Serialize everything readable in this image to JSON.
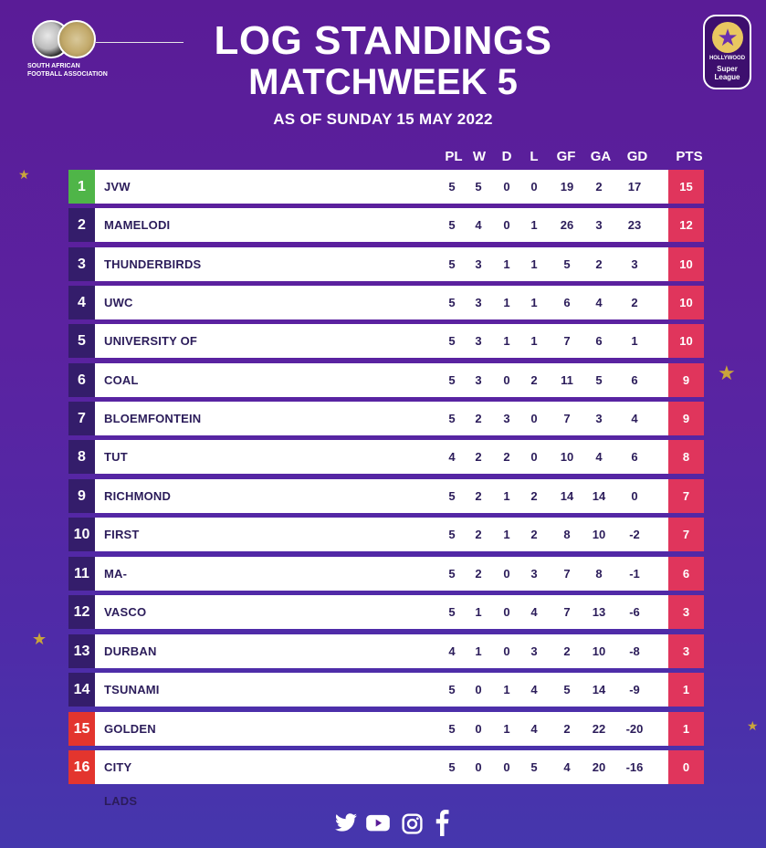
{
  "header": {
    "title_line1": "LOG STANDINGS",
    "title_line2": "MATCHWEEK 5",
    "date_line": "AS OF SUNDAY 15 MAY 2022",
    "left_logo_text_line1": "SOUTH AFRICAN",
    "left_logo_text_line2": "FOOTBALL ASSOCIATION",
    "right_logo_text_line1": "HOLLYWOOD",
    "right_logo_text_line2": "Super",
    "right_logo_text_line3": "League"
  },
  "columns": [
    "PL",
    "W",
    "D",
    "L",
    "GF",
    "GA",
    "GD",
    "PTS"
  ],
  "standings": [
    {
      "pos": "1",
      "team": "JVW FC",
      "pl": "5",
      "w": "5",
      "d": "0",
      "l": "0",
      "gf": "19",
      "ga": "2",
      "gd": "17",
      "pts": "15"
    },
    {
      "pos": "2",
      "team": "MAMELODI SUNDOWNS LADIES FC",
      "pl": "5",
      "w": "4",
      "d": "0",
      "l": "1",
      "gf": "26",
      "ga": "3",
      "gd": "23",
      "pts": "12"
    },
    {
      "pos": "3",
      "team": "THUNDERBIRDS LADIES",
      "pl": "5",
      "w": "3",
      "d": "1",
      "l": "1",
      "gf": "5",
      "ga": "2",
      "gd": "3",
      "pts": "10"
    },
    {
      "pos": "4",
      "team": "UWC",
      "pl": "5",
      "w": "3",
      "d": "1",
      "l": "1",
      "gf": "6",
      "ga": "4",
      "gd": "2",
      "pts": "10"
    },
    {
      "pos": "5",
      "team": "UNIVERSITY OF JOHANNESBURG FC",
      "pl": "5",
      "w": "3",
      "d": "1",
      "l": "1",
      "gf": "7",
      "ga": "6",
      "gd": "1",
      "pts": "10"
    },
    {
      "pos": "6",
      "team": "COAL CITY WIZARDS",
      "pl": "5",
      "w": "3",
      "d": "0",
      "l": "2",
      "gf": "11",
      "ga": "5",
      "gd": "6",
      "pts": "9"
    },
    {
      "pos": "7",
      "team": "BLOEMFONTEIN CELTIC FC",
      "pl": "5",
      "w": "2",
      "d": "3",
      "l": "0",
      "gf": "7",
      "ga": "3",
      "gd": "4",
      "pts": "9"
    },
    {
      "pos": "8",
      "team": "TUT FC",
      "pl": "4",
      "w": "2",
      "d": "2",
      "l": "0",
      "gf": "10",
      "ga": "4",
      "gd": "6",
      "pts": "8"
    },
    {
      "pos": "9",
      "team": "RICHMOND UNITED",
      "pl": "5",
      "w": "2",
      "d": "1",
      "l": "2",
      "gf": "14",
      "ga": "14",
      "gd": "0",
      "pts": "7"
    },
    {
      "pos": "10",
      "team": "FIRST TOUCH FC",
      "pl": "5",
      "w": "2",
      "d": "1",
      "l": "2",
      "gf": "8",
      "ga": "10",
      "gd": "-2",
      "pts": "7"
    },
    {
      "pos": "11",
      "team": "MA-INDIES LADIES",
      "pl": "5",
      "w": "2",
      "d": "0",
      "l": "3",
      "gf": "7",
      "ga": "8",
      "gd": "-1",
      "pts": "6"
    },
    {
      "pos": "12",
      "team": "VASCO DA GAMA",
      "pl": "5",
      "w": "1",
      "d": "0",
      "l": "4",
      "gf": "7",
      "ga": "13",
      "gd": "-6",
      "pts": "3"
    },
    {
      "pos": "13",
      "team": "DURBAN LADIES FC",
      "pl": "4",
      "w": "1",
      "d": "0",
      "l": "3",
      "gf": "2",
      "ga": "10",
      "gd": "-8",
      "pts": "3"
    },
    {
      "pos": "14",
      "team": "TSUNAMI QUEENS FC",
      "pl": "5",
      "w": "0",
      "d": "1",
      "l": "4",
      "gf": "5",
      "ga": "14",
      "gd": "-9",
      "pts": "1"
    },
    {
      "pos": "15",
      "team": "GOLDEN LADIES",
      "pl": "5",
      "w": "0",
      "d": "1",
      "l": "4",
      "gf": "2",
      "ga": "22",
      "gd": "-20",
      "pts": "1"
    },
    {
      "pos": "16",
      "team": "CITY LADS",
      "pl": "5",
      "w": "0",
      "d": "0",
      "l": "5",
      "gf": "4",
      "ga": "20",
      "gd": "-16",
      "pts": "0"
    }
  ],
  "colors": {
    "first_place": "#4fb548",
    "relegation": "#e3352e",
    "points_cell": "#e0355c",
    "position_cell": "#341d6b"
  },
  "social_icons": [
    "twitter-icon",
    "youtube-icon",
    "instagram-icon",
    "facebook-icon"
  ]
}
